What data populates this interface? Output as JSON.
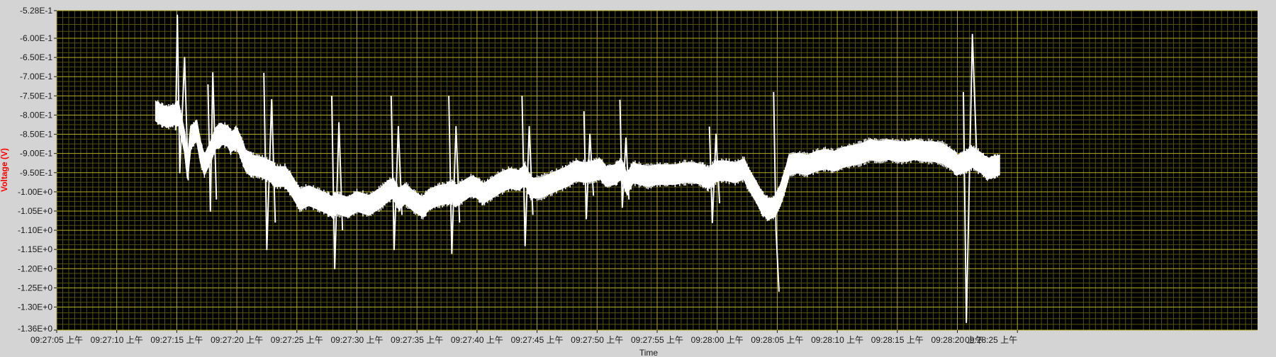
{
  "chart_data": {
    "type": "line",
    "title": "",
    "xlabel": "Time",
    "ylabel": "Voltage (V)",
    "ylim": [
      -1.36,
      -0.528
    ],
    "xlim_seconds": [
      0,
      200
    ],
    "grid": true,
    "legend": "none",
    "colors": {
      "plot_background": "#000000",
      "frame": "#d4d4d4",
      "major_grid": "#b4ab24",
      "minor_grid": "#555210",
      "trace": "#ffffff",
      "ylabel": "#ff0000",
      "tick_text": "#1a1a1a"
    },
    "y_ticks": [
      {
        "label": "-5.28E-1",
        "value": -0.528
      },
      {
        "label": "-6.00E-1",
        "value": -0.6
      },
      {
        "label": "-6.50E-1",
        "value": -0.65
      },
      {
        "label": "-7.00E-1",
        "value": -0.7
      },
      {
        "label": "-7.50E-1",
        "value": -0.75
      },
      {
        "label": "-8.00E-1",
        "value": -0.8
      },
      {
        "label": "-8.50E-1",
        "value": -0.85
      },
      {
        "label": "-9.00E-1",
        "value": -0.9
      },
      {
        "label": "-9.50E-1",
        "value": -0.95
      },
      {
        "label": "-1.00E+0",
        "value": -1.0
      },
      {
        "label": "-1.05E+0",
        "value": -1.05
      },
      {
        "label": "-1.10E+0",
        "value": -1.1
      },
      {
        "label": "-1.15E+0",
        "value": -1.15
      },
      {
        "label": "-1.20E+0",
        "value": -1.2
      },
      {
        "label": "-1.25E+0",
        "value": -1.25
      },
      {
        "label": "-1.30E+0",
        "value": -1.3
      },
      {
        "label": "-1.36E+0",
        "value": -1.36
      }
    ],
    "x_ticks": [
      {
        "label": "09:27:05 上午",
        "value": 0
      },
      {
        "label": "09:27:10 上午",
        "value": 10
      },
      {
        "label": "09:27:15 上午",
        "value": 20
      },
      {
        "label": "09:27:20 上午",
        "value": 30
      },
      {
        "label": "09:27:25 上午",
        "value": 40
      },
      {
        "label": "09:27:30 上午",
        "value": 50
      },
      {
        "label": "09:27:35 上午",
        "value": 60
      },
      {
        "label": "09:27:40 上午",
        "value": 70
      },
      {
        "label": "09:27:45 上午",
        "value": 80
      },
      {
        "label": "09:27:50 上午",
        "value": 90
      },
      {
        "label": "09:27:55 上午",
        "value": 100
      },
      {
        "label": "09:28:00 上午",
        "value": 110
      },
      {
        "label": "09:28:05 上午",
        "value": 120
      },
      {
        "label": "09:28:10 上午",
        "value": 130
      },
      {
        "label": "09:28:15 上午",
        "value": 140
      },
      {
        "label": "09:28:20 上午",
        "value": 150
      },
      {
        "label": "09:28:25 上午",
        "value": 160
      }
    ],
    "series": [
      {
        "band_points": [
          [
            16.5,
            -0.79
          ],
          [
            17.5,
            -0.8
          ],
          [
            18.5,
            -0.805
          ],
          [
            19.5,
            -0.8
          ],
          [
            20.3,
            -0.795
          ],
          [
            21.3,
            -0.87
          ],
          [
            21.8,
            -0.94
          ],
          [
            22.3,
            -0.86
          ],
          [
            23.3,
            -0.84
          ],
          [
            24.0,
            -0.9
          ],
          [
            24.6,
            -0.93
          ],
          [
            25.5,
            -0.9
          ],
          [
            26.5,
            -0.86
          ],
          [
            27.5,
            -0.85
          ],
          [
            28.5,
            -0.855
          ],
          [
            29.0,
            -0.87
          ],
          [
            30.0,
            -0.86
          ],
          [
            30.8,
            -0.89
          ],
          [
            31.5,
            -0.92
          ],
          [
            32.5,
            -0.93
          ],
          [
            34.0,
            -0.935
          ],
          [
            35.5,
            -0.945
          ],
          [
            36.5,
            -0.96
          ],
          [
            38.0,
            -0.96
          ],
          [
            39.0,
            -0.98
          ],
          [
            40.5,
            -1.02
          ],
          [
            42.0,
            -1.01
          ],
          [
            43.5,
            -1.02
          ],
          [
            45.0,
            -1.03
          ],
          [
            46.0,
            -1.04
          ],
          [
            46.5,
            -1.03
          ],
          [
            48.5,
            -1.04
          ],
          [
            50.0,
            -1.025
          ],
          [
            52.0,
            -1.035
          ],
          [
            54.0,
            -1.015
          ],
          [
            55.0,
            -1.0
          ],
          [
            56.0,
            -0.99
          ],
          [
            57.0,
            -1.02
          ],
          [
            58.0,
            -1.005
          ],
          [
            59.5,
            -1.025
          ],
          [
            61.0,
            -1.04
          ],
          [
            62.0,
            -1.02
          ],
          [
            63.5,
            -1.01
          ],
          [
            65.0,
            -1.005
          ],
          [
            66.0,
            -1.0
          ],
          [
            66.5,
            -1.01
          ],
          [
            67.5,
            -1.0
          ],
          [
            69.0,
            -0.985
          ],
          [
            70.0,
            -0.99
          ],
          [
            71.0,
            -1.005
          ],
          [
            72.5,
            -0.99
          ],
          [
            74.0,
            -0.975
          ],
          [
            75.5,
            -0.965
          ],
          [
            77.0,
            -0.97
          ],
          [
            78.0,
            -0.955
          ],
          [
            79.0,
            -0.99
          ],
          [
            80.5,
            -0.99
          ],
          [
            82.0,
            -0.98
          ],
          [
            83.5,
            -0.97
          ],
          [
            85.0,
            -0.96
          ],
          [
            86.5,
            -0.945
          ],
          [
            88.0,
            -0.95
          ],
          [
            89.5,
            -0.945
          ],
          [
            90.5,
            -0.94
          ],
          [
            91.5,
            -0.96
          ],
          [
            93.0,
            -0.955
          ],
          [
            94.0,
            -0.94
          ],
          [
            95.0,
            -0.98
          ],
          [
            96.0,
            -0.95
          ],
          [
            97.0,
            -0.955
          ],
          [
            98.5,
            -0.96
          ],
          [
            100.0,
            -0.955
          ],
          [
            101.5,
            -0.955
          ],
          [
            103.0,
            -0.955
          ],
          [
            104.5,
            -0.95
          ],
          [
            106.0,
            -0.95
          ],
          [
            107.5,
            -0.955
          ],
          [
            108.5,
            -0.965
          ],
          [
            110.0,
            -0.945
          ],
          [
            111.5,
            -0.945
          ],
          [
            113.0,
            -0.95
          ],
          [
            114.5,
            -0.94
          ],
          [
            115.0,
            -0.96
          ],
          [
            116.5,
            -1.0
          ],
          [
            117.5,
            -1.03
          ],
          [
            118.5,
            -1.045
          ],
          [
            119.5,
            -1.04
          ],
          [
            120.5,
            -1.01
          ],
          [
            121.5,
            -0.96
          ],
          [
            122.0,
            -0.93
          ],
          [
            123.5,
            -0.925
          ],
          [
            125.0,
            -0.93
          ],
          [
            126.5,
            -0.92
          ],
          [
            128.0,
            -0.915
          ],
          [
            129.5,
            -0.92
          ],
          [
            131.0,
            -0.91
          ],
          [
            132.5,
            -0.905
          ],
          [
            134.0,
            -0.9
          ],
          [
            135.5,
            -0.89
          ],
          [
            137.0,
            -0.895
          ],
          [
            138.5,
            -0.89
          ],
          [
            140.0,
            -0.895
          ],
          [
            141.5,
            -0.895
          ],
          [
            143.0,
            -0.89
          ],
          [
            144.5,
            -0.895
          ],
          [
            146.0,
            -0.895
          ],
          [
            147.5,
            -0.9
          ],
          [
            149.0,
            -0.915
          ],
          [
            150.0,
            -0.93
          ],
          [
            151.5,
            -0.92
          ],
          [
            152.5,
            -0.91
          ],
          [
            154.0,
            -0.925
          ],
          [
            155.0,
            -0.94
          ],
          [
            156.0,
            -0.935
          ],
          [
            157.0,
            -0.93
          ]
        ],
        "band_width": 0.05,
        "spike_points": [
          [
            19.8,
            -0.84
          ],
          [
            20.1,
            -0.54
          ],
          [
            20.5,
            -0.95
          ],
          [
            21.3,
            -0.65
          ],
          [
            21.9,
            -0.97
          ],
          [
            25.2,
            -0.72
          ],
          [
            25.6,
            -1.05
          ],
          [
            26.0,
            -0.69
          ],
          [
            26.6,
            -1.02
          ],
          [
            34.5,
            -0.69
          ],
          [
            35.0,
            -1.15
          ],
          [
            35.8,
            -0.76
          ],
          [
            36.4,
            -1.08
          ],
          [
            45.8,
            -0.75
          ],
          [
            46.3,
            -1.2
          ],
          [
            47.0,
            -0.82
          ],
          [
            47.6,
            -1.1
          ],
          [
            55.7,
            -0.75
          ],
          [
            56.2,
            -1.15
          ],
          [
            56.9,
            -0.83
          ],
          [
            57.5,
            -1.06
          ],
          [
            65.3,
            -0.75
          ],
          [
            65.8,
            -1.16
          ],
          [
            66.5,
            -0.83
          ],
          [
            67.1,
            -1.08
          ],
          [
            77.5,
            -0.75
          ],
          [
            78.0,
            -1.14
          ],
          [
            78.7,
            -0.83
          ],
          [
            79.3,
            -1.06
          ],
          [
            87.8,
            -0.79
          ],
          [
            88.2,
            -1.07
          ],
          [
            88.8,
            -0.85
          ],
          [
            89.4,
            -1.01
          ],
          [
            93.8,
            -0.76
          ],
          [
            94.2,
            -1.04
          ],
          [
            94.8,
            -0.86
          ],
          [
            95.3,
            -1.02
          ],
          [
            108.7,
            -0.83
          ],
          [
            109.2,
            -1.08
          ],
          [
            109.8,
            -0.85
          ],
          [
            110.4,
            -1.03
          ],
          [
            115.5,
            -0.745
          ],
          [
            119.4,
            -0.74
          ],
          [
            119.8,
            -1.1
          ],
          [
            120.3,
            -1.26
          ],
          [
            151.0,
            -0.74
          ],
          [
            151.5,
            -1.34
          ],
          [
            152.5,
            -0.59
          ],
          [
            153.2,
            -0.9
          ]
        ]
      }
    ]
  }
}
